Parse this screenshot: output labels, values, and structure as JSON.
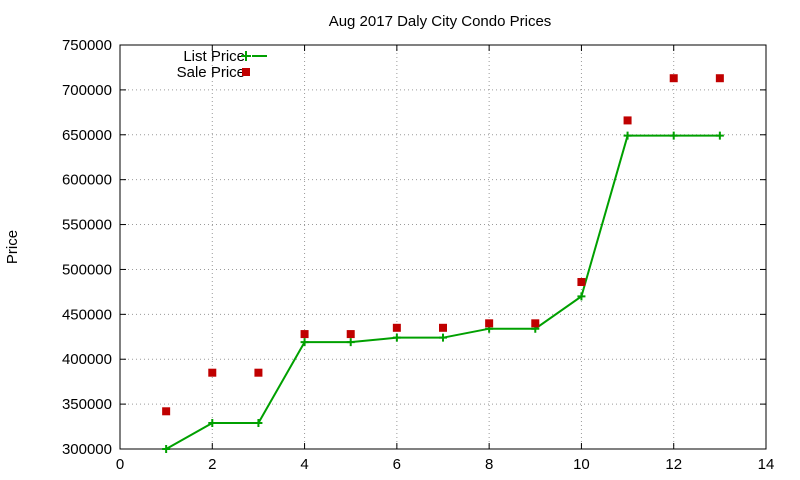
{
  "chart_data": {
    "type": "line",
    "title": "Aug 2017 Daly City Condo Prices",
    "xlabel": "",
    "ylabel": "Price",
    "xlim": [
      0,
      14
    ],
    "ylim": [
      300000,
      750000
    ],
    "x_ticks": [
      0,
      2,
      4,
      6,
      8,
      10,
      12,
      14
    ],
    "y_ticks": [
      300000,
      350000,
      400000,
      450000,
      500000,
      550000,
      600000,
      650000,
      700000,
      750000
    ],
    "grid": true,
    "legend_position": "top-left",
    "series": [
      {
        "name": "List Price",
        "style": "line-with-plus-markers",
        "color": "#00a000",
        "x": [
          1,
          2,
          3,
          4,
          5,
          6,
          7,
          8,
          9,
          10,
          11,
          12,
          13
        ],
        "values": [
          300000,
          329000,
          329000,
          419000,
          419000,
          424000,
          424000,
          434000,
          434000,
          470000,
          649000,
          649000,
          649000
        ]
      },
      {
        "name": "Sale Price",
        "style": "square-points",
        "color": "#c00000",
        "x": [
          1,
          2,
          3,
          4,
          5,
          6,
          7,
          8,
          9,
          10,
          11,
          12,
          13
        ],
        "values": [
          342000,
          385000,
          385000,
          428000,
          428000,
          435000,
          435000,
          440000,
          440000,
          486000,
          666000,
          713000,
          713000
        ]
      }
    ]
  }
}
